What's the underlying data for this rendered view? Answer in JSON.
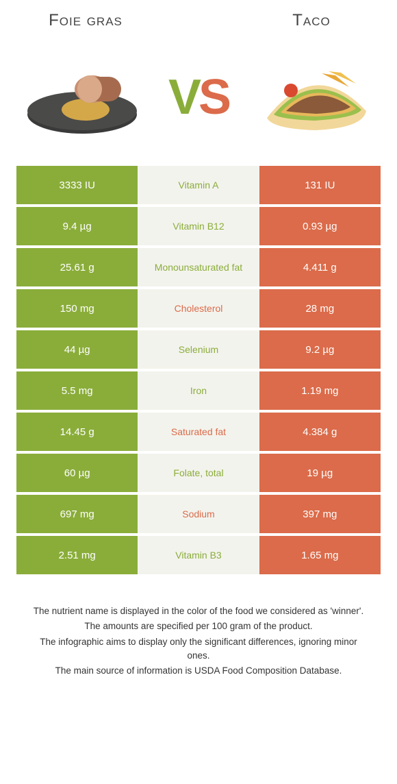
{
  "titles": {
    "left": "Foie gras",
    "right": "Taco"
  },
  "vs": {
    "v": "V",
    "s": "S"
  },
  "colors": {
    "left": "#8aad3a",
    "right": "#db6b4a",
    "mid_bg": "#f3f3ed"
  },
  "rows": [
    {
      "left": "3333 IU",
      "mid": "Vitamin A",
      "right": "131 IU",
      "winner": "left"
    },
    {
      "left": "9.4 µg",
      "mid": "Vitamin B12",
      "right": "0.93 µg",
      "winner": "left"
    },
    {
      "left": "25.61 g",
      "mid": "Monounsaturated fat",
      "right": "4.411 g",
      "winner": "left"
    },
    {
      "left": "150 mg",
      "mid": "Cholesterol",
      "right": "28 mg",
      "winner": "right"
    },
    {
      "left": "44 µg",
      "mid": "Selenium",
      "right": "9.2 µg",
      "winner": "left"
    },
    {
      "left": "5.5 mg",
      "mid": "Iron",
      "right": "1.19 mg",
      "winner": "left"
    },
    {
      "left": "14.45 g",
      "mid": "Saturated fat",
      "right": "4.384 g",
      "winner": "right"
    },
    {
      "left": "60 µg",
      "mid": "Folate, total",
      "right": "19 µg",
      "winner": "left"
    },
    {
      "left": "697 mg",
      "mid": "Sodium",
      "right": "397 mg",
      "winner": "right"
    },
    {
      "left": "2.51 mg",
      "mid": "Vitamin B3",
      "right": "1.65 mg",
      "winner": "left"
    }
  ],
  "footer": [
    "The nutrient name is displayed in the color of the food we considered as 'winner'.",
    "The amounts are specified per 100 gram of the product.",
    "The infographic aims to display only the significant differences, ignoring minor ones.",
    "The main source of information is USDA Food Composition Database."
  ]
}
